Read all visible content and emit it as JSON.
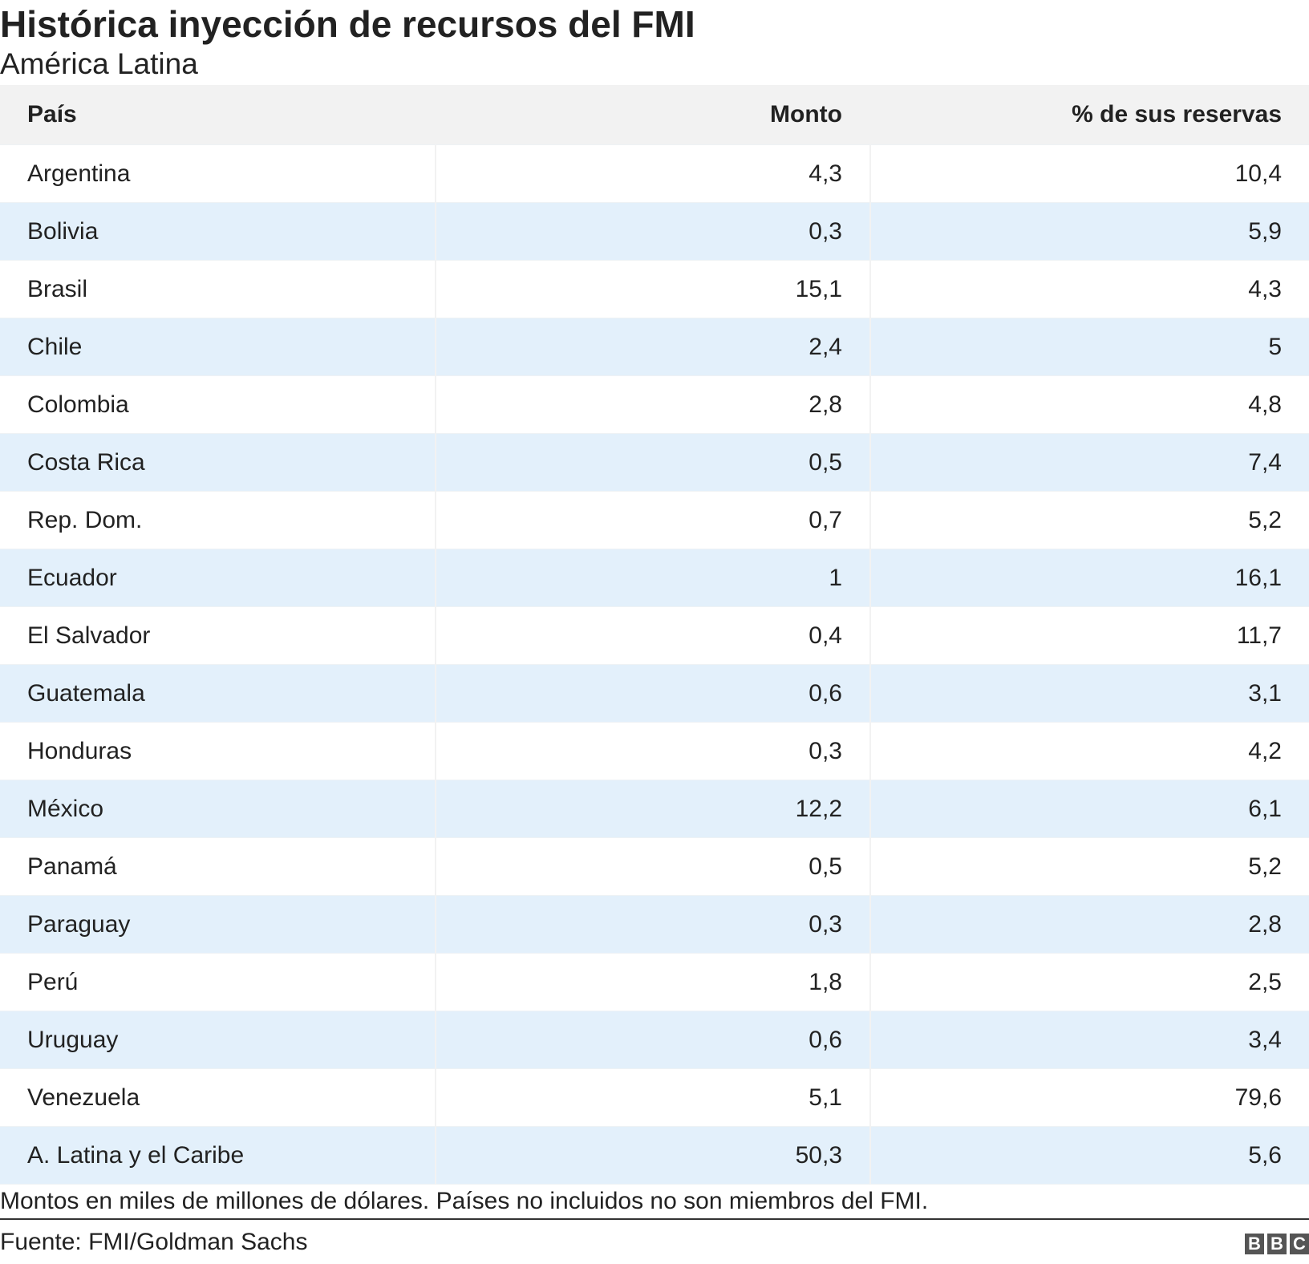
{
  "header": {
    "title": "Histórica inyección de recursos del FMI",
    "subtitle": "América Latina"
  },
  "table": {
    "columns": [
      "País",
      "Monto",
      "% de sus reservas"
    ],
    "rows": [
      [
        "Argentina",
        "4,3",
        "10,4"
      ],
      [
        "Bolivia",
        "0,3",
        "5,9"
      ],
      [
        "Brasil",
        "15,1",
        "4,3"
      ],
      [
        "Chile",
        "2,4",
        "5"
      ],
      [
        "Colombia",
        "2,8",
        "4,8"
      ],
      [
        "Costa Rica",
        "0,5",
        "7,4"
      ],
      [
        "Rep. Dom.",
        "0,7",
        "5,2"
      ],
      [
        "Ecuador",
        "1",
        "16,1"
      ],
      [
        "El Salvador",
        "0,4",
        "11,7"
      ],
      [
        "Guatemala",
        "0,6",
        "3,1"
      ],
      [
        "Honduras",
        "0,3",
        "4,2"
      ],
      [
        "México",
        "12,2",
        "6,1"
      ],
      [
        "Panamá",
        "0,5",
        "5,2"
      ],
      [
        "Paraguay",
        "0,3",
        "2,8"
      ],
      [
        "Perú",
        "1,8",
        "2,5"
      ],
      [
        "Uruguay",
        "0,6",
        "3,4"
      ],
      [
        "Venezuela",
        "5,1",
        "79,6"
      ],
      [
        "A. Latina y el Caribe",
        "50,3",
        "5,6"
      ]
    ]
  },
  "footer": {
    "note": "Montos en miles de millones de dólares. Países no incluidos no son miembros del FMI.",
    "source": "Fuente: FMI/Goldman Sachs",
    "logo": [
      "B",
      "B",
      "C"
    ]
  }
}
